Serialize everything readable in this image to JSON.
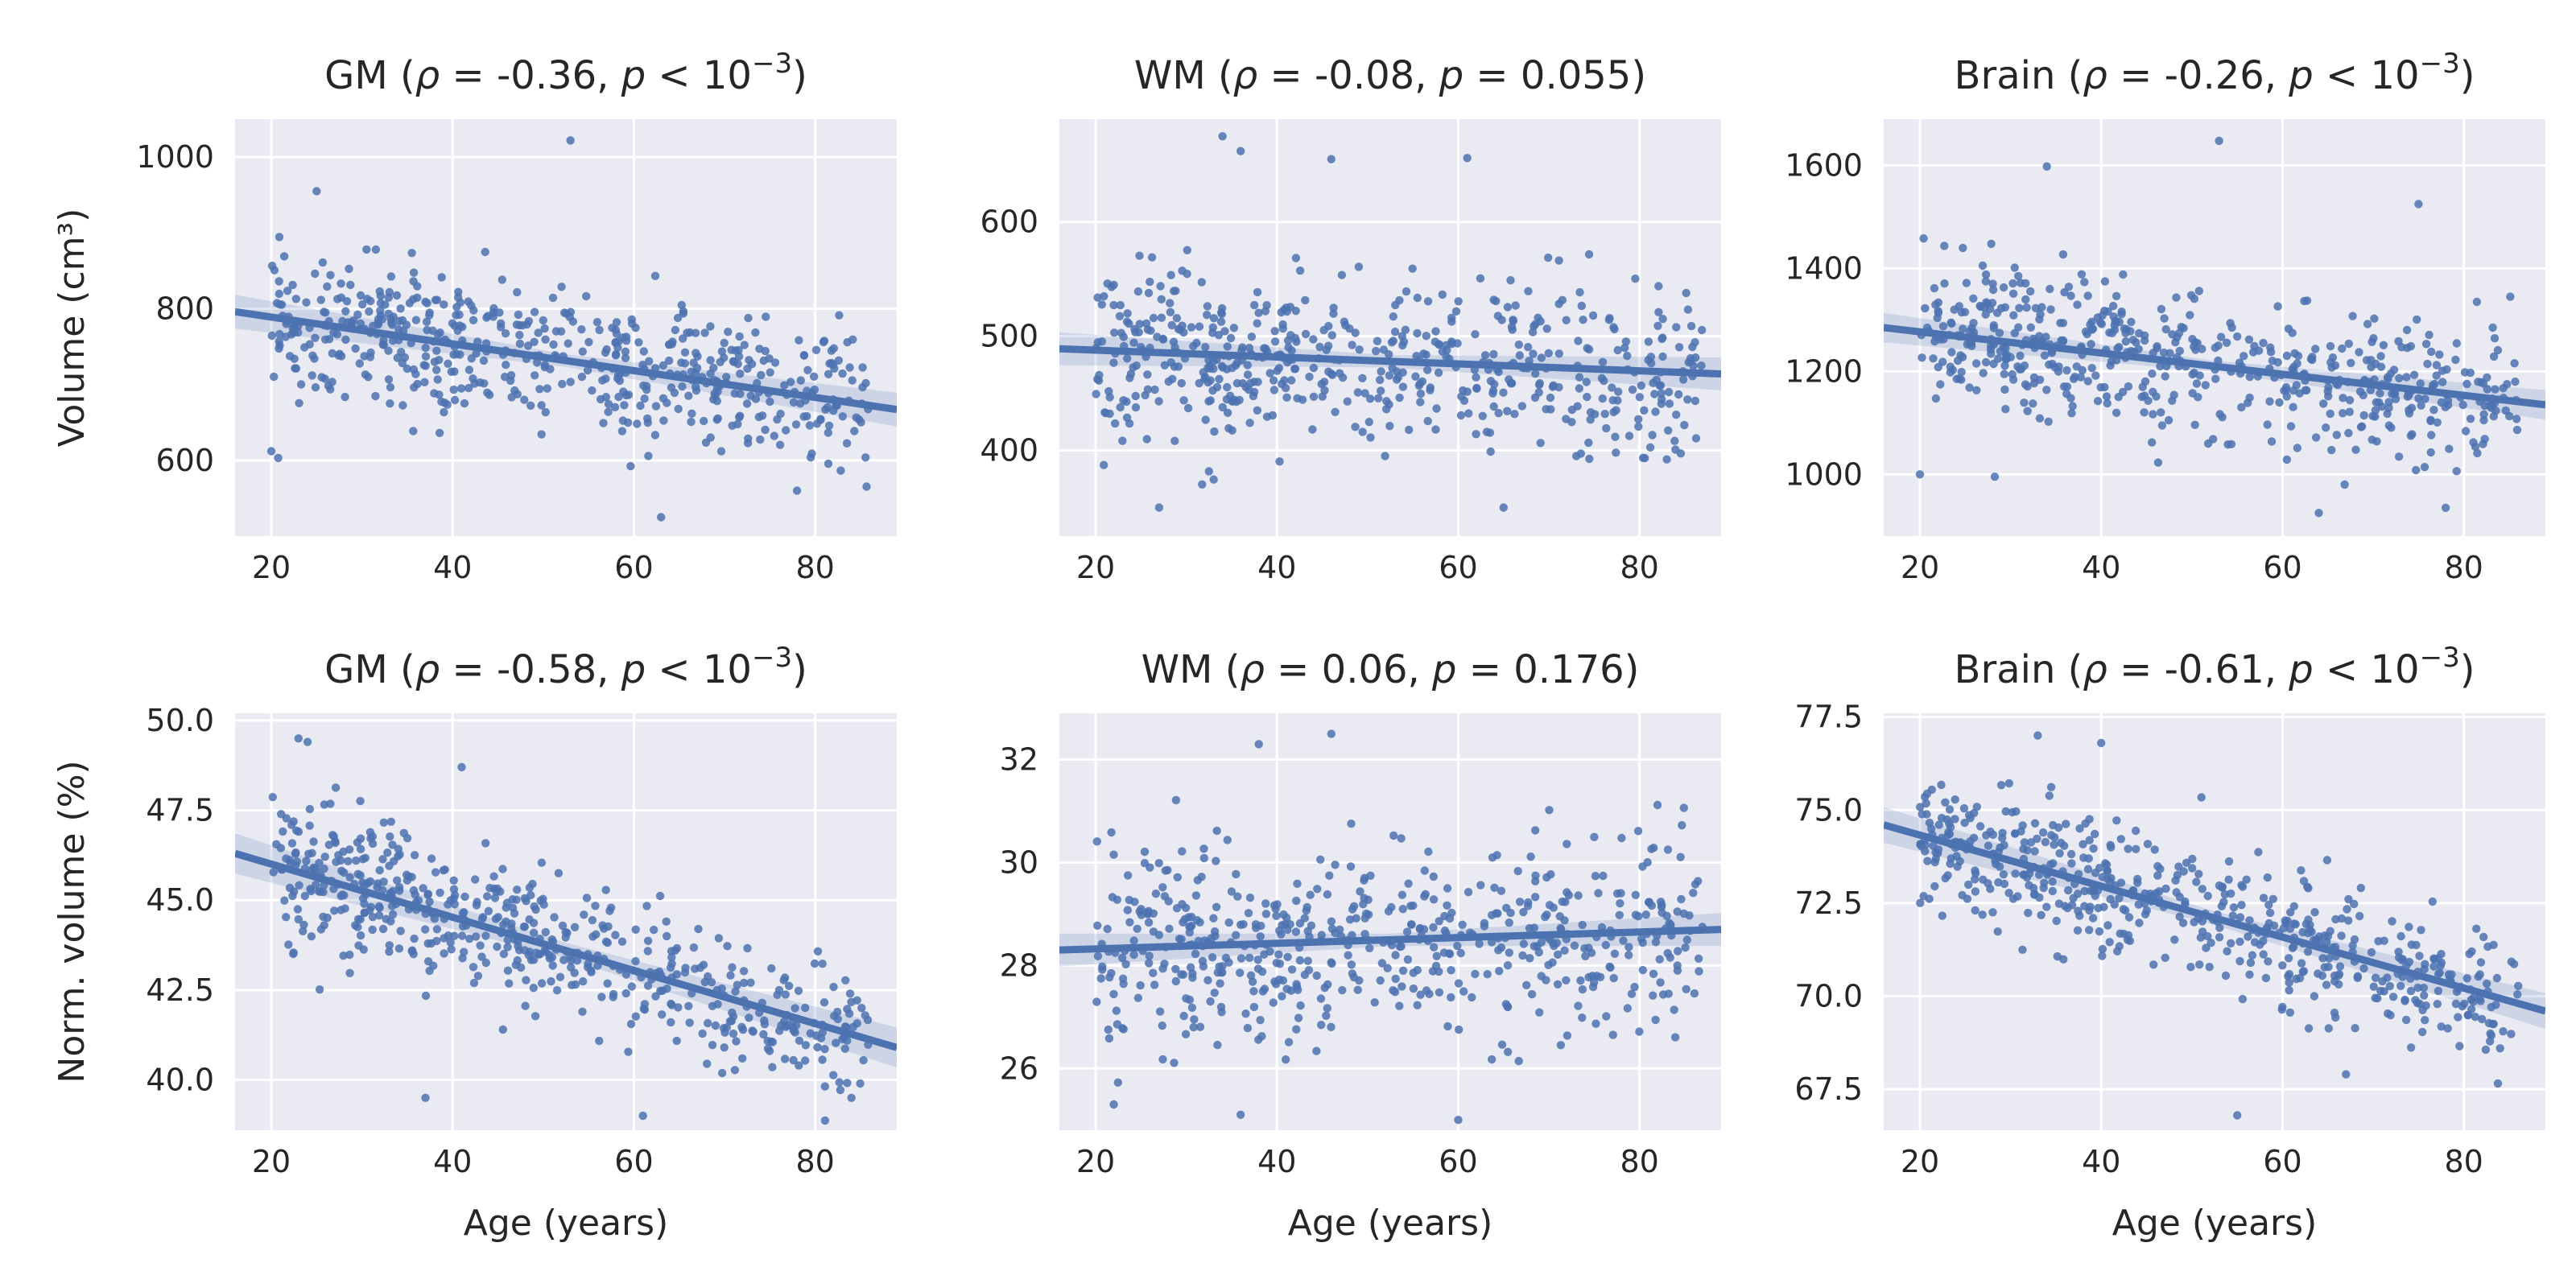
{
  "chart_data": [
    {
      "type": "scatter",
      "region": "GM",
      "row": 0,
      "col": 0,
      "title": {
        "pre": "GM (",
        "rest": " = -0.36, ",
        "rel": " < 10",
        "exp": "−3",
        "end": ")"
      },
      "ylabel": "Volume (cm³)",
      "xlabel": "",
      "xlim": [
        16,
        89
      ],
      "ylim": [
        500,
        1050
      ],
      "xticks": [
        20,
        40,
        60,
        80
      ],
      "yticks": [
        600,
        800,
        1000
      ],
      "ytick_labels": [
        "600",
        "800",
        "1000"
      ],
      "fit": {
        "x": [
          16,
          89
        ],
        "y": [
          796,
          667
        ],
        "ci": 14
      },
      "n": 560,
      "x_range": [
        20,
        86
      ],
      "y_center": 735,
      "slope": -1.77,
      "noise": 72,
      "outliers": [
        [
          53,
          1022
        ],
        [
          63,
          525
        ],
        [
          20,
          612
        ],
        [
          78,
          560
        ],
        [
          25,
          955
        ]
      ]
    },
    {
      "type": "scatter",
      "region": "WM",
      "row": 0,
      "col": 1,
      "title": {
        "pre": "WM (",
        "rest": " = -0.08, ",
        "rel": " = 0.055",
        "exp": "",
        "end": ")"
      },
      "ylabel": "",
      "xlabel": "",
      "xlim": [
        16,
        89
      ],
      "ylim": [
        325,
        690
      ],
      "xticks": [
        20,
        40,
        60,
        80
      ],
      "yticks": [
        400,
        500,
        600
      ],
      "ytick_labels": [
        "400",
        "500",
        "600"
      ],
      "fit": {
        "x": [
          16,
          89
        ],
        "y": [
          489,
          467
        ],
        "ci": 9
      },
      "n": 560,
      "x_range": [
        20,
        87
      ],
      "y_center": 479,
      "slope": -0.3,
      "noise": 60,
      "outliers": [
        [
          34,
          675
        ],
        [
          36,
          662
        ],
        [
          46,
          655
        ],
        [
          61,
          656
        ],
        [
          65,
          350
        ],
        [
          27,
          350
        ]
      ]
    },
    {
      "type": "scatter",
      "region": "Brain",
      "row": 0,
      "col": 2,
      "title": {
        "pre": "Brain (",
        "rest": " = -0.26, ",
        "rel": " < 10",
        "exp": "−3",
        "end": ")"
      },
      "ylabel": "",
      "xlabel": "",
      "xlim": [
        16,
        89
      ],
      "ylim": [
        880,
        1690
      ],
      "xticks": [
        20,
        40,
        60,
        80
      ],
      "yticks": [
        1000,
        1200,
        1400,
        1600
      ],
      "ytick_labels": [
        "1000",
        "1200",
        "1400",
        "1600"
      ],
      "fit": {
        "x": [
          16,
          89
        ],
        "y": [
          1285,
          1135
        ],
        "ci": 18
      },
      "n": 560,
      "x_range": [
        20,
        86
      ],
      "y_center": 1212,
      "slope": -2.06,
      "noise": 115,
      "outliers": [
        [
          53,
          1648
        ],
        [
          34,
          1598
        ],
        [
          75,
          1525
        ],
        [
          64,
          925
        ],
        [
          78,
          935
        ],
        [
          20,
          1000
        ]
      ]
    },
    {
      "type": "scatter",
      "region": "GM",
      "row": 1,
      "col": 0,
      "title": {
        "pre": "GM (",
        "rest": " = -0.58, ",
        "rel": " < 10",
        "exp": "−3",
        "end": ")"
      },
      "ylabel": "Norm. volume (%)",
      "xlabel": "Age (years)",
      "xlim": [
        16,
        89
      ],
      "ylim": [
        38.6,
        50.2
      ],
      "xticks": [
        20,
        40,
        60,
        80
      ],
      "yticks": [
        40.0,
        42.5,
        45.0,
        47.5,
        50.0
      ],
      "ytick_labels": [
        "40.0",
        "42.5",
        "45.0",
        "47.5",
        "50.0"
      ],
      "fit": {
        "x": [
          16,
          89
        ],
        "y": [
          46.3,
          40.9
        ],
        "ci": 0.35
      },
      "n": 560,
      "x_range": [
        20,
        86
      ],
      "y_center": 43.6,
      "slope": -0.074,
      "noise": 1.6,
      "outliers": [
        [
          23,
          49.5
        ],
        [
          24,
          49.4
        ],
        [
          37,
          39.5
        ],
        [
          61,
          39.0
        ],
        [
          84,
          39.5
        ],
        [
          41,
          48.7
        ]
      ]
    },
    {
      "type": "scatter",
      "region": "WM",
      "row": 1,
      "col": 1,
      "title": {
        "pre": "WM (",
        "rest": " = 0.06, ",
        "rel": " = 0.176",
        "exp": "",
        "end": ")"
      },
      "ylabel": "",
      "xlabel": "Age (years)",
      "xlim": [
        16,
        89
      ],
      "ylim": [
        24.8,
        32.9
      ],
      "xticks": [
        20,
        40,
        60,
        80
      ],
      "yticks": [
        26,
        28,
        30,
        32
      ],
      "ytick_labels": [
        "26",
        "28",
        "30",
        "32"
      ],
      "fit": {
        "x": [
          16,
          89
        ],
        "y": [
          28.3,
          28.7
        ],
        "ci": 0.2
      },
      "n": 560,
      "x_range": [
        20,
        87
      ],
      "y_center": 28.5,
      "slope": 0.006,
      "noise": 1.5,
      "outliers": [
        [
          46,
          32.5
        ],
        [
          38,
          32.3
        ],
        [
          36,
          25.1
        ],
        [
          60,
          25.0
        ],
        [
          22,
          25.3
        ]
      ]
    },
    {
      "type": "scatter",
      "region": "Brain",
      "row": 1,
      "col": 2,
      "title": {
        "pre": "Brain (",
        "rest": " = -0.61, ",
        "rel": " < 10",
        "exp": "−3",
        "end": ")"
      },
      "ylabel": "",
      "xlabel": "Age (years)",
      "xlim": [
        16,
        89
      ],
      "ylim": [
        66.4,
        77.6
      ],
      "xticks": [
        20,
        40,
        60,
        80
      ],
      "yticks": [
        67.5,
        70.0,
        72.5,
        75.0,
        77.5
      ],
      "ytick_labels": [
        "67.5",
        "70.0",
        "72.5",
        "75.0",
        "77.5"
      ],
      "fit": {
        "x": [
          16,
          89
        ],
        "y": [
          74.6,
          69.6
        ],
        "ci": 0.3
      },
      "n": 560,
      "x_range": [
        20,
        86
      ],
      "y_center": 72.2,
      "slope": -0.068,
      "noise": 1.4,
      "outliers": [
        [
          33,
          77.0
        ],
        [
          40,
          76.8
        ],
        [
          55,
          66.8
        ],
        [
          84,
          68.6
        ],
        [
          67,
          67.9
        ]
      ]
    }
  ],
  "colors": {
    "accent": "#4c72b0",
    "panel": "#eaeaf2",
    "grid": "#ffffff",
    "text": "#262626"
  }
}
